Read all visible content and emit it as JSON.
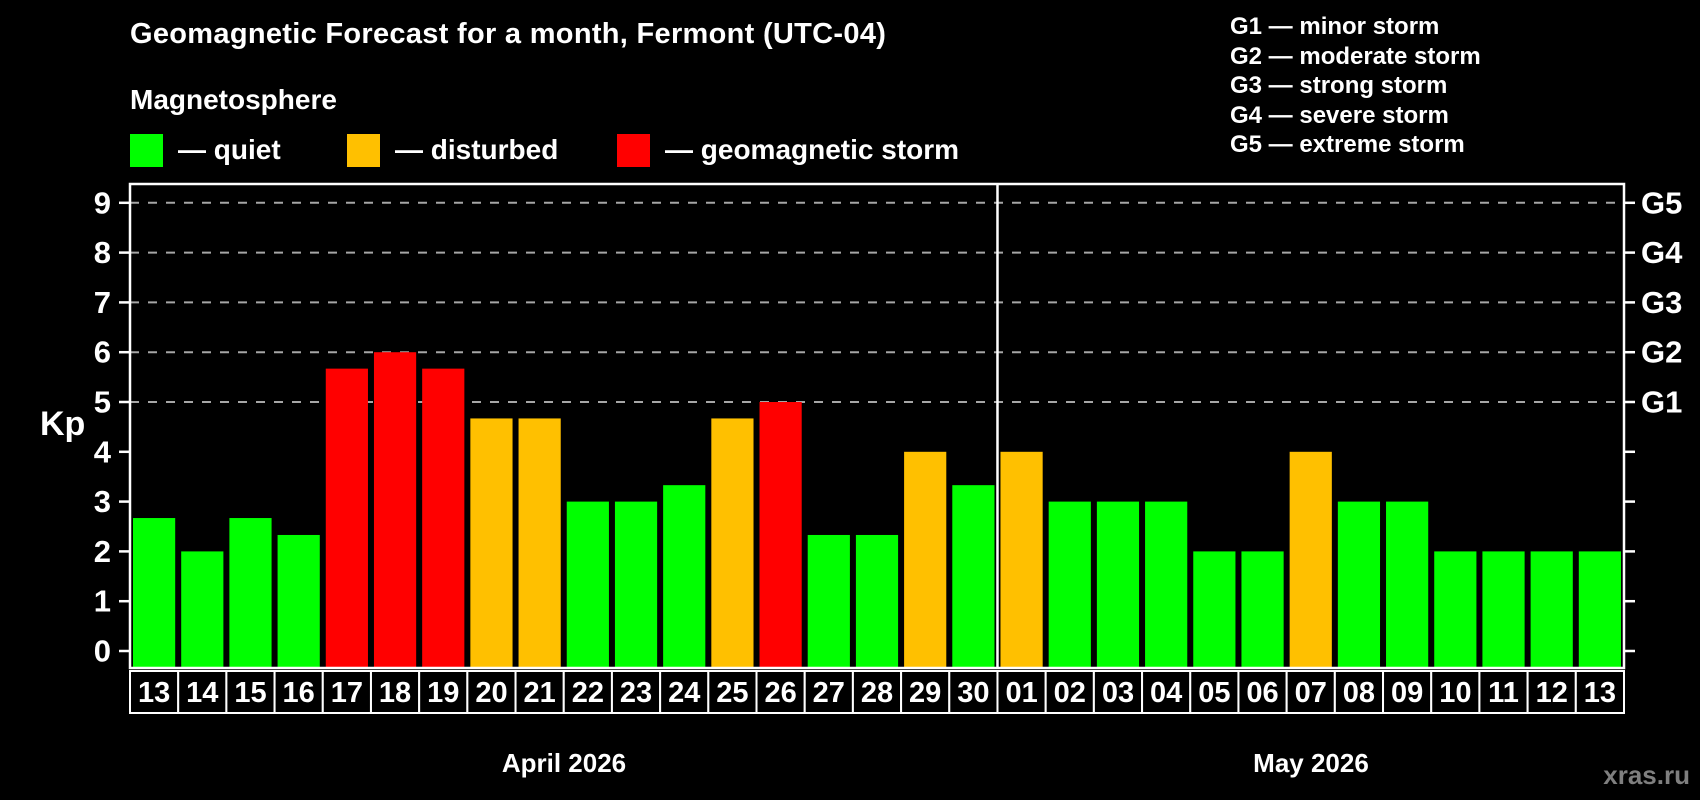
{
  "title": "Geomagnetic Forecast for a month, Fermont (UTC-04)",
  "watermark": "xras.ru",
  "magnetosphere_legend": {
    "title": "Magnetosphere",
    "items": [
      {
        "key": "quiet",
        "label": "— quiet",
        "color": "#00ff00"
      },
      {
        "key": "disturbed",
        "label": "— disturbed",
        "color": "#ffc000"
      },
      {
        "key": "storm",
        "label": "— geomagnetic storm",
        "color": "#ff0000"
      }
    ]
  },
  "storm_scale_legend": {
    "items": [
      "G1 — minor storm",
      "G2 — moderate storm",
      "G3 — strong storm",
      "G4 — severe storm",
      "G5 — extreme storm"
    ]
  },
  "colors": {
    "background": "#000000",
    "axis": "#ffffff",
    "gridline": "#a6a6a6",
    "text": "#ffffff",
    "watermark": "#7f7f7f"
  },
  "chart_data": {
    "type": "bar",
    "title": "Geomagnetic Forecast for a month, Fermont (UTC-04)",
    "xlabel": "",
    "ylabel": "Kp",
    "ylim": [
      0,
      9.4
    ],
    "y_ticks": [
      0,
      1,
      2,
      3,
      4,
      5,
      6,
      7,
      8,
      9
    ],
    "gridlines_at_kp": [
      5,
      6,
      7,
      8,
      9
    ],
    "grid_style": "dashed horizontal lines at storm levels only",
    "legend_position": "top-left",
    "right_axis_labels": [
      {
        "label": "G1",
        "kp": 5
      },
      {
        "label": "G2",
        "kp": 6
      },
      {
        "label": "G3",
        "kp": 7
      },
      {
        "label": "G4",
        "kp": 8
      },
      {
        "label": "G5",
        "kp": 9
      }
    ],
    "months": [
      {
        "label": "April 2026",
        "start_index": 0,
        "num_days": 18
      },
      {
        "label": "May 2026",
        "start_index": 18,
        "num_days": 13
      }
    ],
    "categories": [
      "13",
      "14",
      "15",
      "16",
      "17",
      "18",
      "19",
      "20",
      "21",
      "22",
      "23",
      "24",
      "25",
      "26",
      "27",
      "28",
      "29",
      "30",
      "01",
      "02",
      "03",
      "04",
      "05",
      "06",
      "07",
      "08",
      "09",
      "10",
      "11",
      "12",
      "13"
    ],
    "series": [
      {
        "name": "Kp forecast",
        "values": [
          2.67,
          2,
          2.67,
          2.33,
          5.67,
          6,
          5.67,
          4.67,
          4.67,
          3,
          3,
          3.33,
          4.67,
          5,
          2.33,
          2.33,
          4,
          3.33,
          4,
          3,
          3,
          3,
          2,
          2,
          4,
          3,
          3,
          2,
          2,
          2,
          2
        ],
        "statuses": [
          "quiet",
          "quiet",
          "quiet",
          "quiet",
          "storm",
          "storm",
          "storm",
          "disturbed",
          "disturbed",
          "quiet",
          "quiet",
          "quiet",
          "disturbed",
          "storm",
          "quiet",
          "quiet",
          "disturbed",
          "quiet",
          "disturbed",
          "quiet",
          "quiet",
          "quiet",
          "quiet",
          "quiet",
          "disturbed",
          "quiet",
          "quiet",
          "quiet",
          "quiet",
          "quiet",
          "quiet"
        ]
      }
    ]
  }
}
